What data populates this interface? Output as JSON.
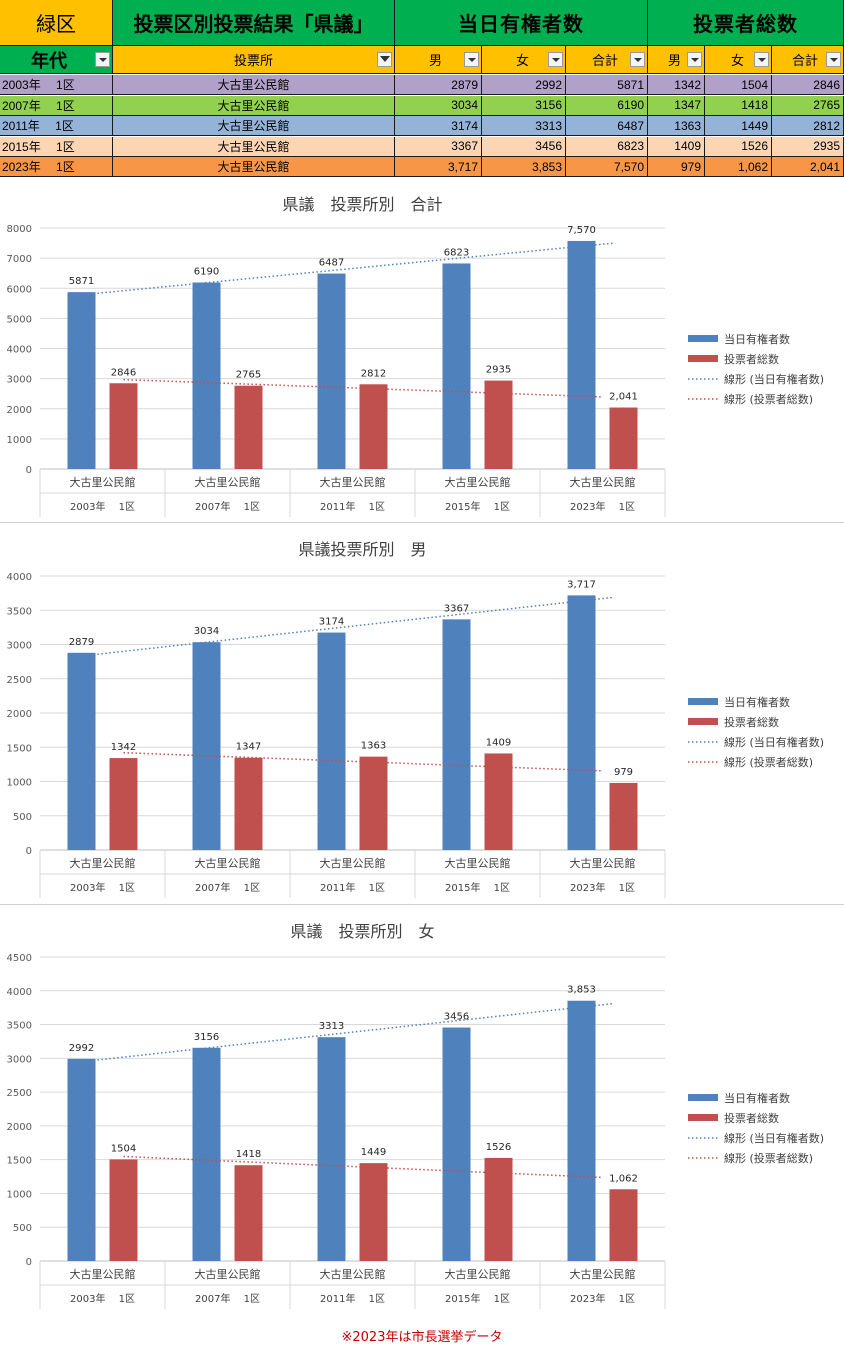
{
  "header": {
    "district": "緑区",
    "title": "投票区別投票結果「県議」",
    "eligible_group": "当日有権者数",
    "voters_group": "投票者総数",
    "age_label": "年代",
    "polling_place_label": "投票所",
    "male": "男",
    "female": "女",
    "total": "合計"
  },
  "row_colors": [
    "#b1a0c7",
    "#92d050",
    "#95b3d7",
    "#fcd5b4",
    "#f79646"
  ],
  "rows": [
    {
      "year": "2003年　 1区",
      "place": "大古里公民館",
      "em": "2879",
      "ef": "2992",
      "et": "5871",
      "vm": "1342",
      "vf": "1504",
      "vt": "2846"
    },
    {
      "year": "2007年　 1区",
      "place": "大古里公民館",
      "em": "3034",
      "ef": "3156",
      "et": "6190",
      "vm": "1347",
      "vf": "1418",
      "vt": "2765"
    },
    {
      "year": "2011年　 1区",
      "place": "大古里公民館",
      "em": "3174",
      "ef": "3313",
      "et": "6487",
      "vm": "1363",
      "vf": "1449",
      "vt": "2812"
    },
    {
      "year": "2015年　 1区",
      "place": "大古里公民館",
      "em": "3367",
      "ef": "3456",
      "et": "6823",
      "vm": "1409",
      "vf": "1526",
      "vt": "2935"
    },
    {
      "year": "2023年　 1区",
      "place": "大古里公民館",
      "em": "3,717",
      "ef": "3,853",
      "et": "7,570",
      "vm": "979",
      "vf": "1,062",
      "vt": "2,041"
    }
  ],
  "colors": {
    "eligible": "#4f81bd",
    "voters": "#c0504d"
  },
  "chart_data": [
    {
      "type": "bar",
      "title": "県議　投票所別　合計",
      "categories": [
        "大古里公民館",
        "大古里公民館",
        "大古里公民館",
        "大古里公民館",
        "大古里公民館"
      ],
      "groups": [
        "2003年　 1区",
        "2007年　 1区",
        "2011年　 1区",
        "2015年　 1区",
        "2023年　 1区"
      ],
      "series": [
        {
          "name": "当日有権者数",
          "values": [
            5871,
            6190,
            6487,
            6823,
            7570
          ],
          "labels": [
            "5871",
            "6190",
            "6487",
            "6823",
            "7,570"
          ]
        },
        {
          "name": "投票者総数",
          "values": [
            2846,
            2765,
            2812,
            2935,
            2041
          ],
          "labels": [
            "2846",
            "2765",
            "2812",
            "2935",
            "2,041"
          ]
        }
      ],
      "trendlines": [
        "線形 (当日有権者数)",
        "線形 (投票者総数)"
      ],
      "ylim": [
        0,
        8000
      ],
      "yticks": [
        0,
        1000,
        2000,
        3000,
        4000,
        5000,
        6000,
        7000,
        8000
      ],
      "legend": "right",
      "grid": true
    },
    {
      "type": "bar",
      "title": "県議投票所別　男",
      "categories": [
        "大古里公民館",
        "大古里公民館",
        "大古里公民館",
        "大古里公民館",
        "大古里公民館"
      ],
      "groups": [
        "2003年　 1区",
        "2007年　 1区",
        "2011年　 1区",
        "2015年　 1区",
        "2023年　 1区"
      ],
      "series": [
        {
          "name": "当日有権者数",
          "values": [
            2879,
            3034,
            3174,
            3367,
            3717
          ],
          "labels": [
            "2879",
            "3034",
            "3174",
            "3367",
            "3,717"
          ]
        },
        {
          "name": "投票者総数",
          "values": [
            1342,
            1347,
            1363,
            1409,
            979
          ],
          "labels": [
            "1342",
            "1347",
            "1363",
            "1409",
            "979"
          ]
        }
      ],
      "trendlines": [
        "線形 (当日有権者数)",
        "線形 (投票者総数)"
      ],
      "ylim": [
        0,
        4000
      ],
      "yticks": [
        0,
        500,
        1000,
        1500,
        2000,
        2500,
        3000,
        3500,
        4000
      ],
      "legend": "right",
      "grid": true
    },
    {
      "type": "bar",
      "title": "県議　投票所別　女",
      "categories": [
        "大古里公民館",
        "大古里公民館",
        "大古里公民館",
        "大古里公民館",
        "大古里公民館"
      ],
      "groups": [
        "2003年　 1区",
        "2007年　 1区",
        "2011年　 1区",
        "2015年　 1区",
        "2023年　 1区"
      ],
      "series": [
        {
          "name": "当日有権者数",
          "values": [
            2992,
            3156,
            3313,
            3456,
            3853
          ],
          "labels": [
            "2992",
            "3156",
            "3313",
            "3456",
            "3,853"
          ]
        },
        {
          "name": "投票者総数",
          "values": [
            1504,
            1418,
            1449,
            1526,
            1062
          ],
          "labels": [
            "1504",
            "1418",
            "1449",
            "1526",
            "1,062"
          ]
        }
      ],
      "trendlines": [
        "線形 (当日有権者数)",
        "線形 (投票者総数)"
      ],
      "ylim": [
        0,
        4500
      ],
      "yticks": [
        0,
        500,
        1000,
        1500,
        2000,
        2500,
        3000,
        3500,
        4000,
        4500
      ],
      "legend": "right",
      "grid": true
    }
  ],
  "footnote": "※2023年は市長選挙データ"
}
